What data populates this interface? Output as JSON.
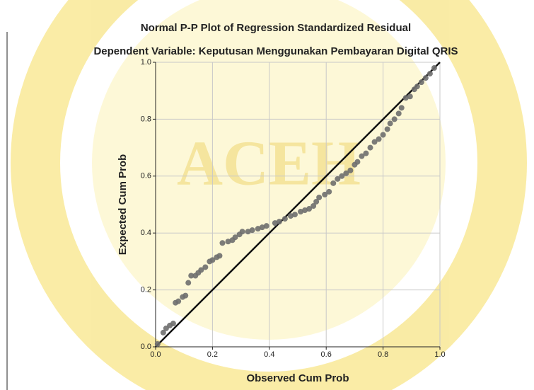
{
  "chart_data": {
    "type": "scatter",
    "title": "Normal P-P Plot of Regression Standardized Residual",
    "subtitle": "Dependent Variable: Keputusan Menggunakan Pembayaran Digital QRIS",
    "xlabel": "Observed Cum Prob",
    "ylabel": "Expected Cum Prob",
    "watermark": "ACEH",
    "color": "#6e6e6e",
    "x": [
      0.007,
      0.027,
      0.037,
      0.05,
      0.062,
      0.07,
      0.08,
      0.095,
      0.105,
      0.115,
      0.125,
      0.14,
      0.15,
      0.16,
      0.175,
      0.19,
      0.2,
      0.215,
      0.225,
      0.235,
      0.255,
      0.27,
      0.28,
      0.295,
      0.305,
      0.325,
      0.34,
      0.36,
      0.375,
      0.39,
      0.42,
      0.435,
      0.455,
      0.475,
      0.49,
      0.51,
      0.525,
      0.54,
      0.555,
      0.565,
      0.575,
      0.595,
      0.61,
      0.625,
      0.64,
      0.655,
      0.67,
      0.685,
      0.7,
      0.71,
      0.725,
      0.74,
      0.755,
      0.77,
      0.785,
      0.8,
      0.815,
      0.825,
      0.84,
      0.855,
      0.865,
      0.88,
      0.895,
      0.91,
      0.92,
      0.935,
      0.95,
      0.965,
      0.98
    ],
    "values": [
      0.01,
      0.05,
      0.065,
      0.075,
      0.082,
      0.155,
      0.16,
      0.175,
      0.18,
      0.225,
      0.25,
      0.25,
      0.26,
      0.27,
      0.28,
      0.3,
      0.305,
      0.315,
      0.32,
      0.365,
      0.37,
      0.375,
      0.385,
      0.395,
      0.405,
      0.405,
      0.41,
      0.415,
      0.42,
      0.425,
      0.435,
      0.44,
      0.45,
      0.46,
      0.465,
      0.475,
      0.48,
      0.485,
      0.495,
      0.51,
      0.525,
      0.535,
      0.545,
      0.575,
      0.59,
      0.6,
      0.61,
      0.62,
      0.64,
      0.65,
      0.67,
      0.68,
      0.7,
      0.72,
      0.73,
      0.745,
      0.765,
      0.785,
      0.8,
      0.82,
      0.84,
      0.875,
      0.88,
      0.905,
      0.915,
      0.93,
      0.945,
      0.96,
      0.98
    ],
    "xlim": [
      0,
      1
    ],
    "ylim": [
      0,
      1
    ],
    "xticks": [
      {
        "value": 0,
        "label": "0.0"
      },
      0.2,
      0.4,
      0.6,
      0.8,
      {
        "value": 1,
        "label": "1.0"
      }
    ],
    "yticks": [
      {
        "value": 0,
        "label": "0.0"
      },
      0.2,
      0.4,
      0.6,
      0.8,
      {
        "value": 1,
        "label": "1.0"
      }
    ],
    "grid": true
  }
}
